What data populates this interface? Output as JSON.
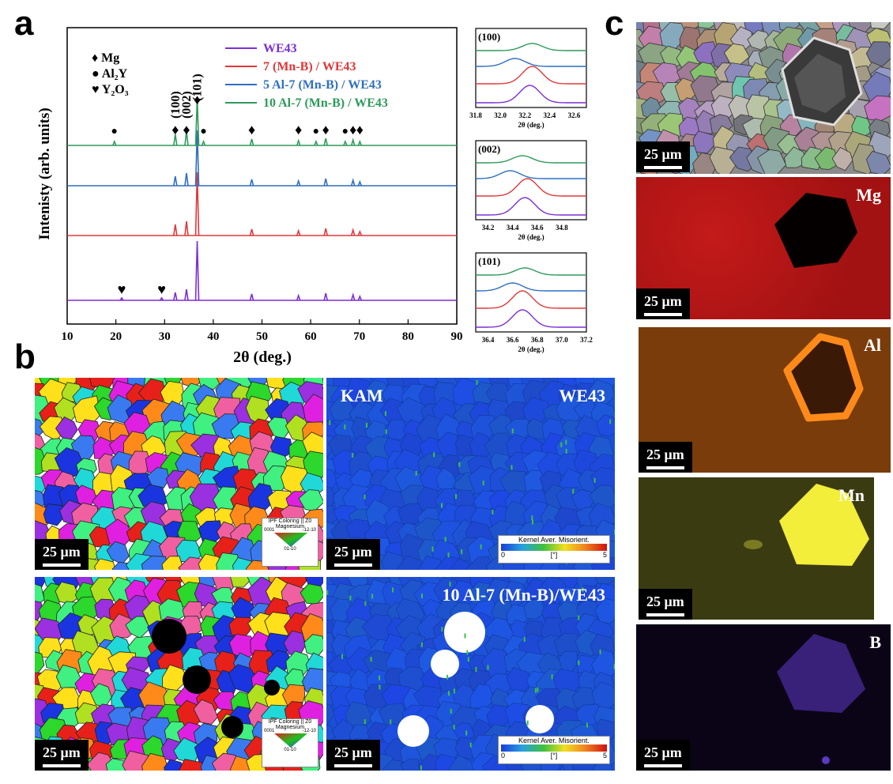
{
  "panels": {
    "a": "a",
    "b": "b",
    "c": "c"
  },
  "chart_data": [
    {
      "type": "line",
      "title": "",
      "xlabel": "2θ (deg.)",
      "ylabel": "Intenisty (arb. units)",
      "xlim": [
        10,
        90
      ],
      "xticks": [
        10,
        20,
        30,
        40,
        50,
        60,
        70,
        80,
        90
      ],
      "series": [
        {
          "name": "WE43",
          "color": "#7b2fd4"
        },
        {
          "name": "7 (Mn-B) / WE43",
          "color": "#e0383a"
        },
        {
          "name": "5 Al-7 (Mn-B) / WE43",
          "color": "#2f6fc0"
        },
        {
          "name": "10 Al-7 (Mn-B) / WE43",
          "color": "#2e9a5a"
        }
      ],
      "peaks": [
        32.2,
        34.5,
        36.7,
        47.9,
        57.5,
        63.1,
        68.7,
        70.1
      ],
      "phase_legend": [
        {
          "symbol": "♦",
          "label": "Mg"
        },
        {
          "symbol": "●",
          "label": "Al₂Y"
        },
        {
          "symbol": "♥",
          "label": "Y₂O₃"
        }
      ],
      "peak_labels": [
        "(100)",
        "(002)",
        "(101)"
      ],
      "markers": [
        {
          "phase": "Mg",
          "x": [
            32.2,
            34.5,
            36.7,
            47.9,
            57.5,
            63.1,
            68.7,
            70.1
          ]
        },
        {
          "phase": "Al₂Y",
          "x": [
            19.7,
            38.0,
            61.1,
            67.1
          ]
        },
        {
          "phase": "Y₂O₃",
          "x": [
            21.2,
            29.4
          ]
        }
      ]
    },
    {
      "type": "line",
      "title": "(100)",
      "xlabel": "2θ (deg.)",
      "xlim": [
        31.8,
        32.7
      ],
      "xticks": [
        31.8,
        32.0,
        32.2,
        32.4,
        32.6
      ],
      "centers": [
        32.24,
        32.26,
        32.12,
        32.26
      ]
    },
    {
      "type": "line",
      "title": "(002)",
      "xlabel": "2θ (deg.)",
      "xlim": [
        34.1,
        35.0
      ],
      "xticks": [
        34.2,
        34.4,
        34.6,
        34.8
      ],
      "centers": [
        34.5,
        34.52,
        34.38,
        34.48
      ]
    },
    {
      "type": "line",
      "title": "(101)",
      "xlabel": "2θ (deg.)",
      "xlim": [
        36.3,
        37.2
      ],
      "xticks": [
        36.4,
        36.6,
        36.8,
        37.0,
        37.2
      ],
      "centers": [
        36.68,
        36.68,
        36.6,
        36.7
      ]
    }
  ],
  "ebsd": {
    "scale": "25 μm",
    "ipf_legend": {
      "title": "IPF Coloring || Z0",
      "sub": "Magnesium",
      "c1": "0001",
      "c2": "-12-10",
      "c3": "01-10"
    },
    "kam_legend": {
      "title": "Kernel Aver. Misorient.",
      "min": "0",
      "unit": "[°]",
      "max": "5"
    },
    "kam_label": "KAM",
    "top_sample": "WE43",
    "bottom_sample": "10 Al-7 (Mn-B)/WE43"
  },
  "eds": {
    "scale": "25 μm",
    "elements": [
      "Mg",
      "Al",
      "Mn",
      "B"
    ]
  }
}
